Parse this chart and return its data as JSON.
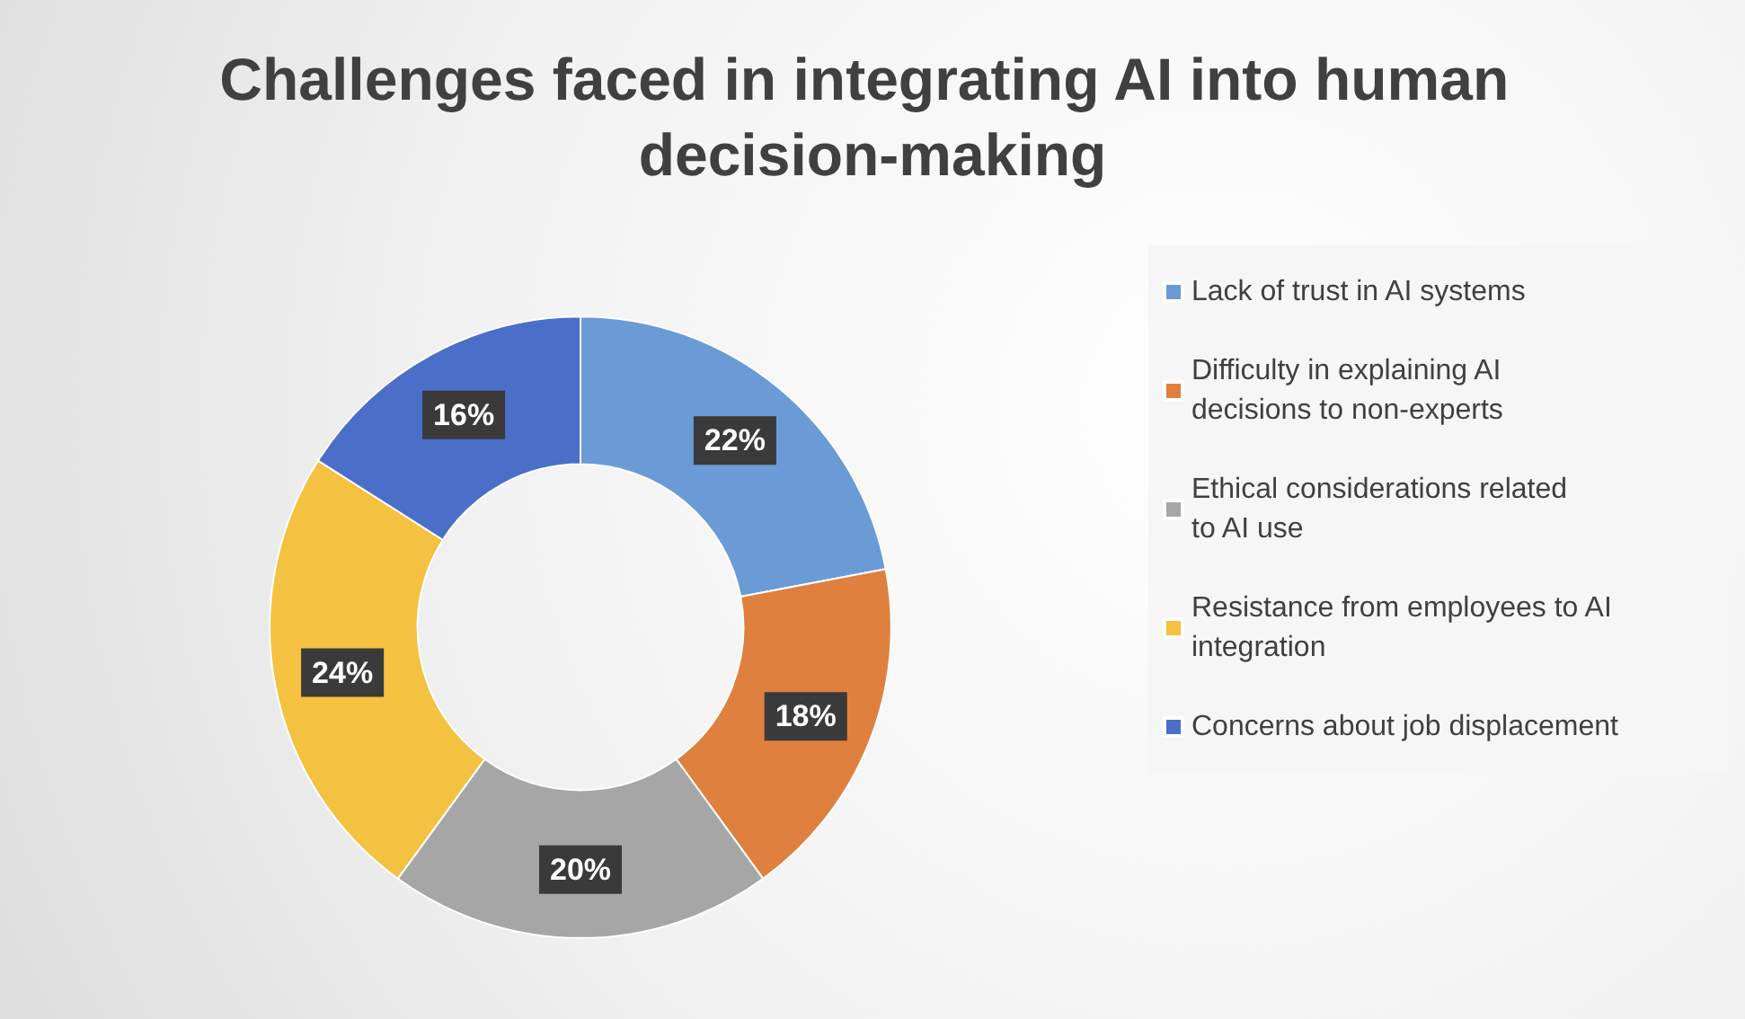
{
  "chart_data": {
    "type": "donut",
    "title": "Challenges faced in integrating AI into human decision-making",
    "categories": [
      "Lack of trust in AI systems",
      "Difficulty in explaining AI decisions to non-experts",
      "Ethical considerations related to AI use",
      "Resistance from employees to AI integration",
      "Concerns about job displacement"
    ],
    "values": [
      22,
      18,
      20,
      24,
      16
    ],
    "value_labels": [
      "22%",
      "18%",
      "20%",
      "24%",
      "16%"
    ],
    "colors": [
      "#6a9bd6",
      "#e0803e",
      "#a6a6a6",
      "#f4c140",
      "#4b6ec8"
    ],
    "legend": "right"
  }
}
